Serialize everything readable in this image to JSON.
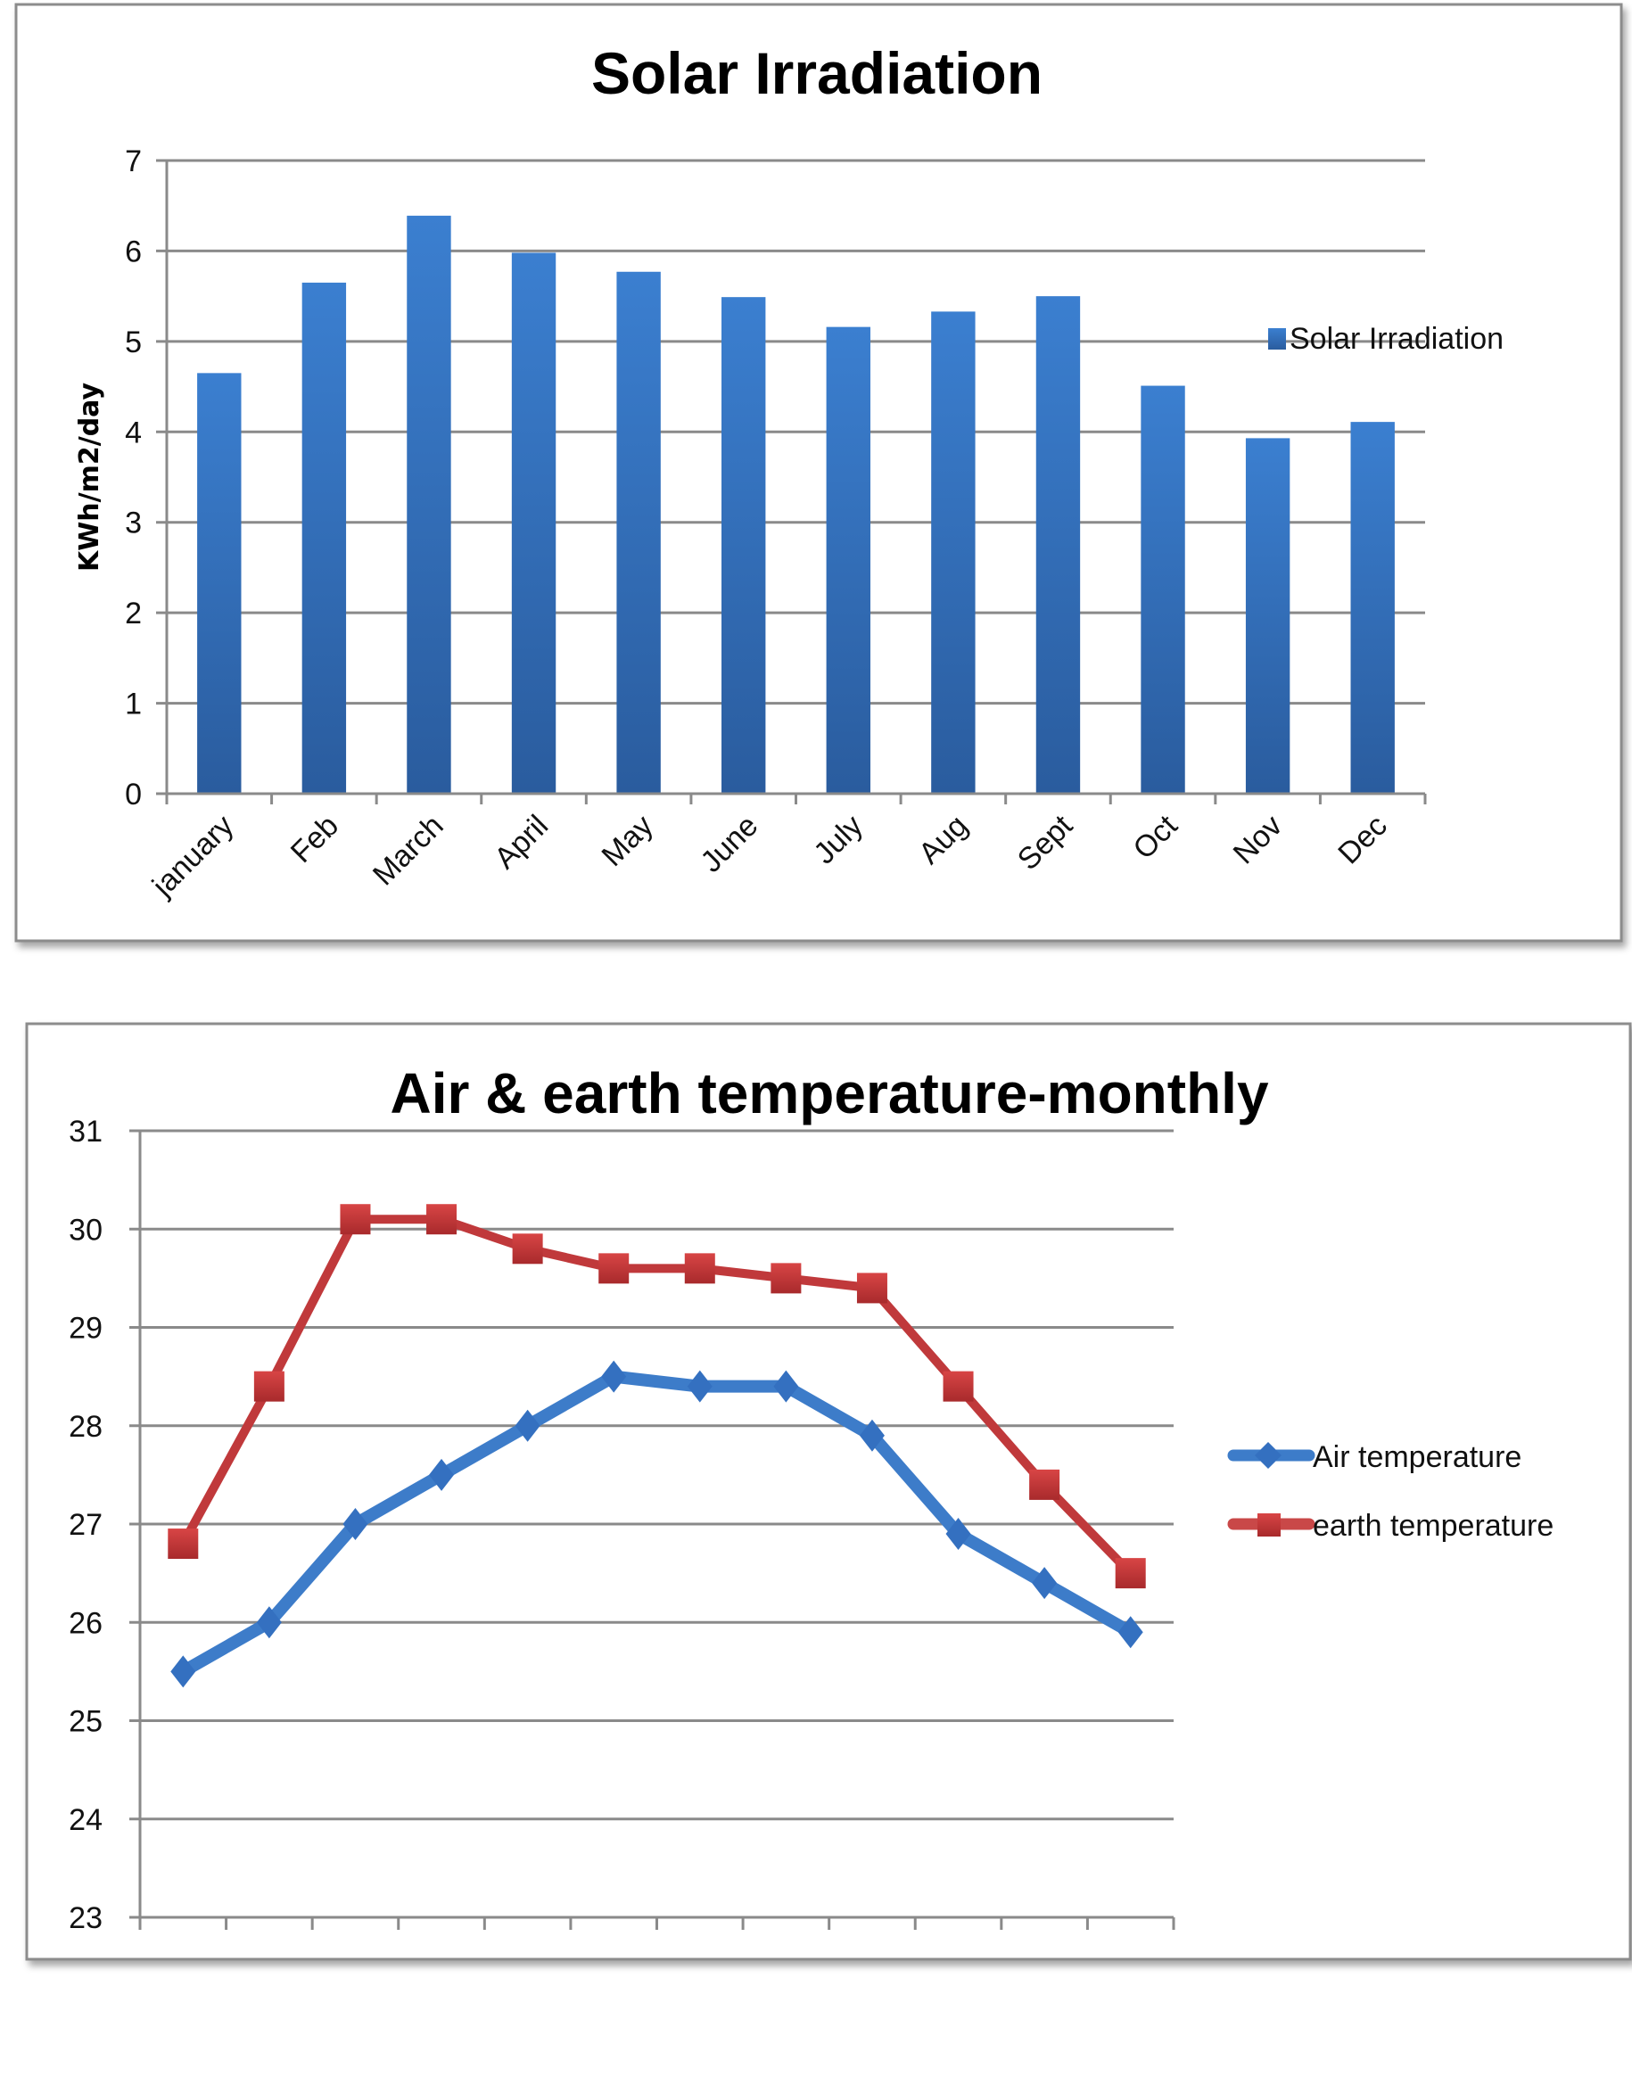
{
  "chart_data": [
    {
      "type": "bar",
      "title": "Solar Irradiation",
      "xlabel": "",
      "ylabel": "KWh/m2/day",
      "ylim": [
        0,
        7
      ],
      "yticks": [
        "0",
        "1",
        "2",
        "3",
        "4",
        "5",
        "6",
        "7"
      ],
      "grid": true,
      "legend_position": "right",
      "categories": [
        "january",
        "Feb",
        "March",
        "April",
        "May",
        "June",
        "July",
        "Aug",
        "Sept",
        "Oct",
        "Nov",
        "Dec"
      ],
      "series": [
        {
          "name": "Solar Irradiation",
          "color": "#3a78c9",
          "values": [
            4.65,
            5.65,
            6.39,
            5.98,
            5.77,
            5.49,
            5.16,
            5.33,
            5.5,
            4.51,
            3.93,
            4.11
          ]
        }
      ]
    },
    {
      "type": "line",
      "title": "Air & earth temperature-monthly",
      "xlabel": "",
      "ylabel": "",
      "ylim": [
        23,
        31
      ],
      "yticks": [
        "23",
        "24",
        "25",
        "26",
        "27",
        "28",
        "29",
        "30",
        "31"
      ],
      "grid": true,
      "legend_position": "right",
      "categories_count": 12,
      "series": [
        {
          "name": "Air temperature",
          "color": "#3d7cc9",
          "marker": "diamond",
          "values": [
            25.5,
            26.0,
            27.0,
            27.5,
            28.0,
            28.5,
            28.4,
            28.4,
            27.9,
            26.9,
            26.4,
            25.9
          ]
        },
        {
          "name": "earth temperature",
          "color": "#c0393b",
          "marker": "square",
          "values": [
            26.8,
            28.4,
            30.1,
            30.1,
            29.8,
            29.6,
            29.6,
            29.5,
            29.4,
            28.4,
            27.4,
            26.5
          ]
        }
      ]
    }
  ]
}
